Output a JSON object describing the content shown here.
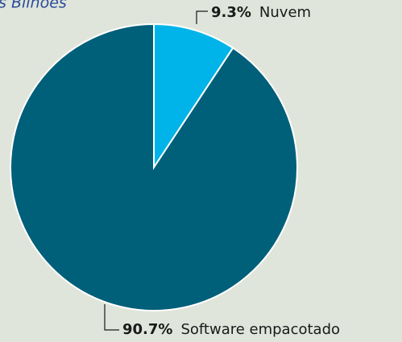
{
  "chart_data": {
    "type": "pie",
    "title": "s Bilhões",
    "categories": [
      "Nuvem",
      "Software empacotado"
    ],
    "values": [
      9.3,
      90.7
    ],
    "value_labels": [
      "9.3%",
      "90.7%"
    ],
    "colors": [
      "#00b4e9",
      "#005f79"
    ]
  }
}
